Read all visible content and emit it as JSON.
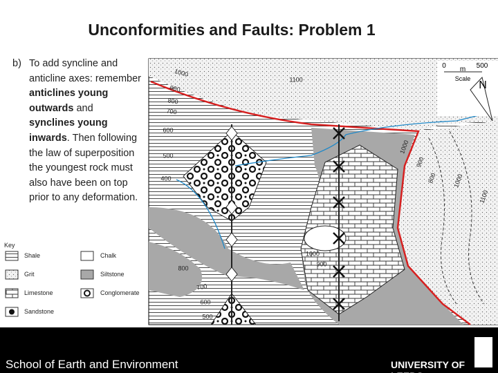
{
  "title": "Unconformities and Faults: Problem 1",
  "body": {
    "label": "b)",
    "runs": [
      {
        "text": "To add syncline and anticline axes: remember ",
        "bold": false
      },
      {
        "text": "anticlines young outwards",
        "bold": true
      },
      {
        "text": " and ",
        "bold": false
      },
      {
        "text": "synclines young inwards",
        "bold": true
      },
      {
        "text": ". Then following the law of superposition the youngest rock must also have been on top prior to any deformation.",
        "bold": false
      }
    ]
  },
  "key": {
    "title": "Key",
    "items": [
      "Shale",
      "Grit",
      "Limestone",
      "Sandstone",
      "Chalk",
      "Siltstone",
      "Conglomerate"
    ]
  },
  "map": {
    "scale": {
      "start": "0",
      "unit": "m",
      "end": "500",
      "label": "Scale"
    },
    "north": "N",
    "contour_labels": [
      "1000",
      "1100",
      "900",
      "800",
      "700",
      "600",
      "500",
      "400",
      "800",
      "700",
      "600",
      "500",
      "1000",
      "900",
      "800",
      "1000",
      "1100",
      "1000",
      "900"
    ]
  },
  "footer": {
    "school": "School of Earth and Environment",
    "university": "UNIVERSITY OF LEEDS"
  }
}
